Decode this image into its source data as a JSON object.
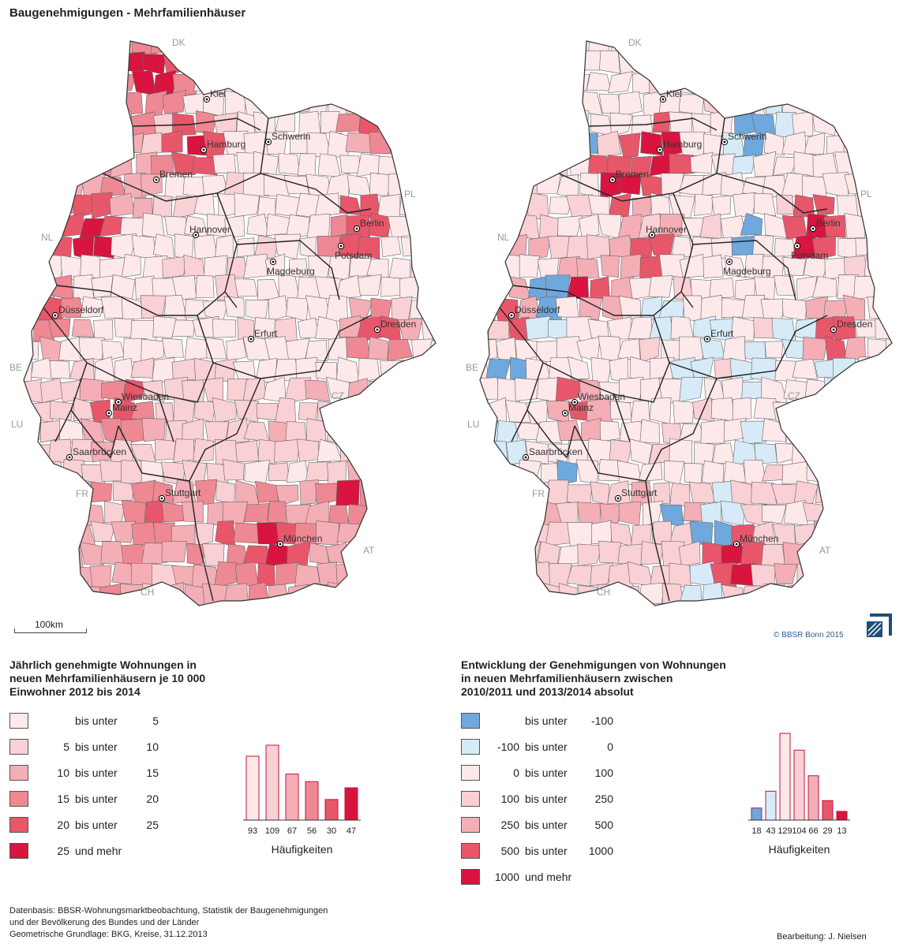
{
  "title": "Baugenehmigungen - Mehrfamilienhäuser",
  "colors": {
    "c1": "#fde8ea",
    "c2": "#f9d0d4",
    "c3": "#f4aeb6",
    "c4": "#ee8893",
    "c5": "#e8566a",
    "c6": "#d8143f",
    "blue": "#6fa8dc",
    "lightblue": "#d6ebf7",
    "border": "#666",
    "stateBorder": "#222"
  },
  "countries": {
    "DK": "DK",
    "PL": "PL",
    "NL": "NL",
    "BE": "BE",
    "LU": "LU",
    "FR": "FR",
    "CH": "CH",
    "AT": "AT",
    "CZ": "CZ"
  },
  "cities": [
    "Kiel",
    "Hamburg",
    "Schwerin",
    "Bremen",
    "Berlin",
    "Hannover",
    "Potsdam",
    "Magdeburg",
    "Düsseldorf",
    "Erfurt",
    "Dresden",
    "Wiesbaden",
    "Mainz",
    "Saarbrücken",
    "Stuttgart",
    "München"
  ],
  "scale_label": "100km",
  "copyright": "© BBSR Bonn 2015",
  "legend_left": {
    "title_lines": [
      "Jährlich genehmigte Wohnungen in",
      "neuen Mehrfamilienhäusern je 10 000",
      "Einwohner 2012 bis 2014"
    ],
    "rows": [
      {
        "from": "",
        "mid": "bis unter",
        "to": "5",
        "color": "#fde8ea"
      },
      {
        "from": "5",
        "mid": "bis unter",
        "to": "10",
        "color": "#f9d0d4"
      },
      {
        "from": "10",
        "mid": "bis unter",
        "to": "15",
        "color": "#f4aeb6"
      },
      {
        "from": "15",
        "mid": "bis unter",
        "to": "20",
        "color": "#ee8893"
      },
      {
        "from": "20",
        "mid": "bis unter",
        "to": "25",
        "color": "#e8566a"
      },
      {
        "from": "25",
        "mid": "und mehr",
        "to": "",
        "color": "#d8143f"
      }
    ],
    "histogram_label": "Häufigkeiten",
    "frequencies": [
      93,
      109,
      67,
      56,
      30,
      47
    ]
  },
  "legend_right": {
    "title_lines": [
      "Entwicklung der Genehmigungen von Wohnungen",
      "in neuen Mehrfamilienhäusern zwischen",
      "2010/2011 und 2013/2014 absolut"
    ],
    "rows": [
      {
        "from": "",
        "mid": "bis unter",
        "to": "-100",
        "color": "#6fa8dc"
      },
      {
        "from": "-100",
        "mid": "bis unter",
        "to": "0",
        "color": "#d6ebf7"
      },
      {
        "from": "0",
        "mid": "bis unter",
        "to": "100",
        "color": "#fde8ea"
      },
      {
        "from": "100",
        "mid": "bis unter",
        "to": "250",
        "color": "#f9d0d4"
      },
      {
        "from": "250",
        "mid": "bis unter",
        "to": "500",
        "color": "#f4aeb6"
      },
      {
        "from": "500",
        "mid": "bis unter",
        "to": "1000",
        "color": "#e8566a"
      },
      {
        "from": "1000",
        "mid": "und mehr",
        "to": "",
        "color": "#d8143f"
      }
    ],
    "histogram_label": "Häufigkeiten",
    "frequencies": [
      18,
      43,
      129,
      104,
      66,
      29,
      13
    ]
  },
  "footer_lines": [
    "Datenbasis: BBSR-Wohnungsmarktbeobachtung, Statistik der Baugenehmigungen",
    "und der Bevölkerung des Bundes und der Länder",
    "Geometrische Grundlage: BKG, Kreise, 31.12.2013"
  ],
  "footer_right": "Bearbeitung: J. Nielsen"
}
